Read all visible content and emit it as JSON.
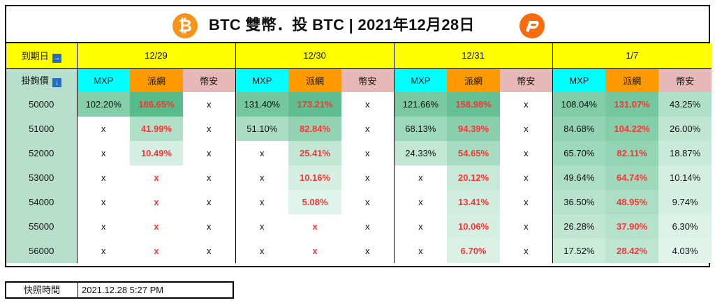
{
  "title": "BTC 雙幣．投 BTC | 2021年12月28日",
  "logos": {
    "left": "bitcoin-logo",
    "right": "pionex-logo",
    "left_glyph": "₿"
  },
  "colors": {
    "expiry_header": "#ffff00",
    "strike_column": "#b7dfcb",
    "mxp_header": "#00ffff",
    "pionex_header": "#ff9900",
    "bian_header": "#e6b8b7",
    "highlight_red": "#ff3333"
  },
  "row_labels": {
    "expiry": "到期日",
    "strike": "掛鉤價",
    "expiry_icon": "→",
    "strike_icon": "↓"
  },
  "platforms": [
    "MXP",
    "派網",
    "幣安"
  ],
  "expiries": [
    {
      "date": "12/29",
      "rows": [
        [
          "102.20%",
          "186.65%",
          "x"
        ],
        [
          "x",
          "41.99%",
          "x"
        ],
        [
          "x",
          "10.49%",
          "x"
        ],
        [
          "x",
          "x",
          "x"
        ],
        [
          "x",
          "x",
          "x"
        ],
        [
          "x",
          "x",
          "x"
        ],
        [
          "x",
          "x",
          "x"
        ]
      ]
    },
    {
      "date": "12/30",
      "rows": [
        [
          "131.40%",
          "173.21%",
          "x"
        ],
        [
          "51.10%",
          "82.84%",
          "x"
        ],
        [
          "x",
          "25.41%",
          "x"
        ],
        [
          "x",
          "10.16%",
          "x"
        ],
        [
          "x",
          "5.08%",
          "x"
        ],
        [
          "x",
          "x",
          "x"
        ],
        [
          "x",
          "x",
          "x"
        ]
      ]
    },
    {
      "date": "12/31",
      "rows": [
        [
          "121.66%",
          "158.98%",
          "x"
        ],
        [
          "68.13%",
          "94.39%",
          "x"
        ],
        [
          "24.33%",
          "54.65%",
          "x"
        ],
        [
          "x",
          "20.12%",
          "x"
        ],
        [
          "x",
          "13.41%",
          "x"
        ],
        [
          "x",
          "10.06%",
          "x"
        ],
        [
          "x",
          "6.70%",
          "x"
        ]
      ]
    },
    {
      "date": "1/7",
      "rows": [
        [
          "108.04%",
          "131.07%",
          "43.25%"
        ],
        [
          "84.68%",
          "104.22%",
          "26.00%"
        ],
        [
          "65.70%",
          "82.11%",
          "18.87%"
        ],
        [
          "49.64%",
          "64.74%",
          "10.14%"
        ],
        [
          "36.50%",
          "48.95%",
          "9.74%"
        ],
        [
          "26.28%",
          "37.90%",
          "6.30%"
        ],
        [
          "17.52%",
          "28.42%",
          "4.03%"
        ]
      ]
    }
  ],
  "strikes": [
    "50000",
    "51000",
    "52000",
    "53000",
    "54000",
    "55000",
    "56000"
  ],
  "footer": {
    "label": "快照時間",
    "value": "2021.12.28 5:27 PM"
  }
}
